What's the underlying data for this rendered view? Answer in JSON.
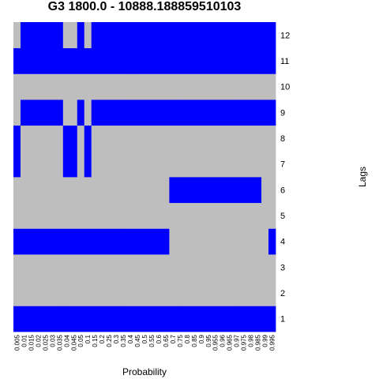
{
  "chart_data": {
    "type": "heatmap",
    "title": "G3 1800.0 - 10888.188859510103",
    "xlabel": "Probability",
    "ylabel": "Lags",
    "x": [
      "0.005",
      "0.01",
      "0.015",
      "0.02",
      "0.025",
      "0.03",
      "0.035",
      "0.04",
      "0.045",
      "0.05",
      "0.1",
      "0.15",
      "0.2",
      "0.25",
      "0.3",
      "0.35",
      "0.4",
      "0.45",
      "0.5",
      "0.55",
      "0.6",
      "0.65",
      "0.7",
      "0.75",
      "0.8",
      "0.85",
      "0.9",
      "0.95",
      "0.955",
      "0.96",
      "0.965",
      "0.97",
      "0.975",
      "0.98",
      "0.985",
      "0.99",
      "0.995"
    ],
    "y": [
      "1",
      "2",
      "3",
      "4",
      "5",
      "6",
      "7",
      "8",
      "9",
      "10",
      "11",
      "12"
    ],
    "legend": "none",
    "colors": {
      "1": "#0000ff",
      "0": "#bebebe"
    },
    "values": [
      [
        1,
        1,
        1,
        1,
        1,
        1,
        1,
        1,
        1,
        1,
        1,
        1,
        1,
        1,
        1,
        1,
        1,
        1,
        1,
        1,
        1,
        1,
        1,
        1,
        1,
        1,
        1,
        1,
        1,
        1,
        1,
        1,
        1,
        1,
        1,
        1,
        1
      ],
      [
        0,
        0,
        0,
        0,
        0,
        0,
        0,
        0,
        0,
        0,
        0,
        0,
        0,
        0,
        0,
        0,
        0,
        0,
        0,
        0,
        0,
        0,
        0,
        0,
        0,
        0,
        0,
        0,
        0,
        0,
        0,
        0,
        0,
        0,
        0,
        0,
        0
      ],
      [
        0,
        0,
        0,
        0,
        0,
        0,
        0,
        0,
        0,
        0,
        0,
        0,
        0,
        0,
        0,
        0,
        0,
        0,
        0,
        0,
        0,
        0,
        0,
        0,
        0,
        0,
        0,
        0,
        0,
        0,
        0,
        0,
        0,
        0,
        0,
        0,
        0
      ],
      [
        1,
        1,
        1,
        1,
        1,
        1,
        1,
        1,
        1,
        1,
        1,
        1,
        1,
        1,
        1,
        1,
        1,
        1,
        1,
        1,
        1,
        1,
        0,
        0,
        0,
        0,
        0,
        0,
        0,
        0,
        0,
        0,
        0,
        0,
        0,
        0,
        1
      ],
      [
        0,
        0,
        0,
        0,
        0,
        0,
        0,
        0,
        0,
        0,
        0,
        0,
        0,
        0,
        0,
        0,
        0,
        0,
        0,
        0,
        0,
        0,
        0,
        0,
        0,
        0,
        0,
        0,
        0,
        0,
        0,
        0,
        0,
        0,
        0,
        0,
        0
      ],
      [
        0,
        0,
        0,
        0,
        0,
        0,
        0,
        0,
        0,
        0,
        0,
        0,
        0,
        0,
        0,
        0,
        0,
        0,
        0,
        0,
        0,
        0,
        1,
        1,
        1,
        1,
        1,
        1,
        1,
        1,
        1,
        1,
        1,
        1,
        1,
        0,
        0
      ],
      [
        1,
        0,
        0,
        0,
        0,
        0,
        0,
        1,
        1,
        0,
        1,
        0,
        0,
        0,
        0,
        0,
        0,
        0,
        0,
        0,
        0,
        0,
        0,
        0,
        0,
        0,
        0,
        0,
        0,
        0,
        0,
        0,
        0,
        0,
        0,
        0,
        0
      ],
      [
        1,
        0,
        0,
        0,
        0,
        0,
        0,
        1,
        1,
        0,
        1,
        0,
        0,
        0,
        0,
        0,
        0,
        0,
        0,
        0,
        0,
        0,
        0,
        0,
        0,
        0,
        0,
        0,
        0,
        0,
        0,
        0,
        0,
        0,
        0,
        0,
        0
      ],
      [
        0,
        1,
        1,
        1,
        1,
        1,
        1,
        0,
        0,
        1,
        0,
        1,
        1,
        1,
        1,
        1,
        1,
        1,
        1,
        1,
        1,
        1,
        1,
        1,
        1,
        1,
        1,
        1,
        1,
        1,
        1,
        1,
        1,
        1,
        1,
        1,
        1
      ],
      [
        0,
        0,
        0,
        0,
        0,
        0,
        0,
        0,
        0,
        0,
        0,
        0,
        0,
        0,
        0,
        0,
        0,
        0,
        0,
        0,
        0,
        0,
        0,
        0,
        0,
        0,
        0,
        0,
        0,
        0,
        0,
        0,
        0,
        0,
        0,
        0,
        0
      ],
      [
        1,
        1,
        1,
        1,
        1,
        1,
        1,
        1,
        1,
        1,
        1,
        1,
        1,
        1,
        1,
        1,
        1,
        1,
        1,
        1,
        1,
        1,
        1,
        1,
        1,
        1,
        1,
        1,
        1,
        1,
        1,
        1,
        1,
        1,
        1,
        1,
        1
      ],
      [
        0,
        1,
        1,
        1,
        1,
        1,
        1,
        0,
        0,
        1,
        0,
        1,
        1,
        1,
        1,
        1,
        1,
        1,
        1,
        1,
        1,
        1,
        1,
        1,
        1,
        1,
        1,
        1,
        1,
        1,
        1,
        1,
        1,
        1,
        1,
        1,
        1
      ]
    ]
  }
}
